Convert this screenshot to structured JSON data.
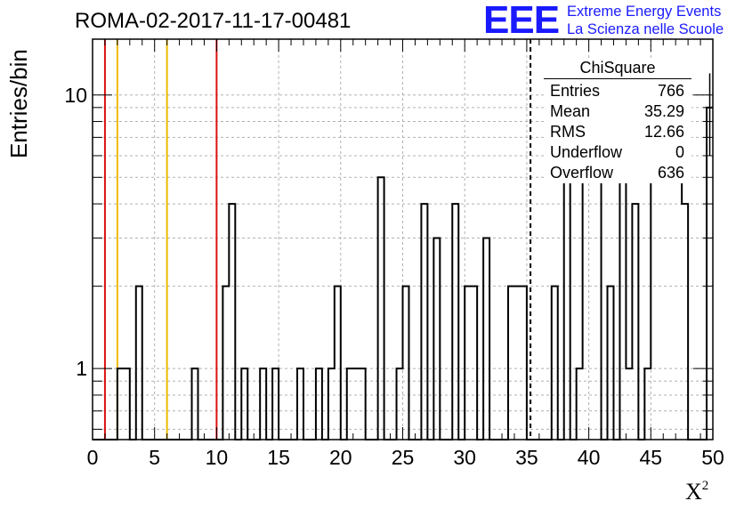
{
  "title": "ROMA-02-2017-11-17-00481",
  "logo": {
    "text": "EEE",
    "line1": "Extreme Energy Events",
    "line2": "La Scienza nelle Scuole",
    "color": "#1a1aff"
  },
  "chart_data": {
    "type": "histogram",
    "xlabel": "X",
    "xlabel_sup": "2",
    "ylabel": "Entries/bin",
    "xlim": [
      0,
      50
    ],
    "ylim": [
      0.55,
      16
    ],
    "log_y": true,
    "grid": true,
    "bin_width": 0.5,
    "x_ticks": [
      "0",
      "5",
      "10",
      "15",
      "20",
      "25",
      "30",
      "35",
      "40",
      "45",
      "50"
    ],
    "y_ticks": [
      "1",
      "10"
    ],
    "bins": [
      {
        "x": 2.0,
        "count": 1
      },
      {
        "x": 2.5,
        "count": 1
      },
      {
        "x": 3.5,
        "count": 2
      },
      {
        "x": 8.0,
        "count": 1
      },
      {
        "x": 10.5,
        "count": 2
      },
      {
        "x": 11.0,
        "count": 4
      },
      {
        "x": 12.0,
        "count": 1
      },
      {
        "x": 13.5,
        "count": 1
      },
      {
        "x": 14.5,
        "count": 1
      },
      {
        "x": 16.5,
        "count": 1
      },
      {
        "x": 18.0,
        "count": 1
      },
      {
        "x": 19.0,
        "count": 1
      },
      {
        "x": 19.5,
        "count": 2
      },
      {
        "x": 20.5,
        "count": 1
      },
      {
        "x": 21.0,
        "count": 1
      },
      {
        "x": 21.5,
        "count": 1
      },
      {
        "x": 23.0,
        "count": 5
      },
      {
        "x": 24.5,
        "count": 1
      },
      {
        "x": 25.0,
        "count": 2
      },
      {
        "x": 26.5,
        "count": 4
      },
      {
        "x": 27.5,
        "count": 3
      },
      {
        "x": 29.0,
        "count": 4
      },
      {
        "x": 30.0,
        "count": 2
      },
      {
        "x": 30.5,
        "count": 2
      },
      {
        "x": 31.5,
        "count": 3
      },
      {
        "x": 33.5,
        "count": 2
      },
      {
        "x": 34.0,
        "count": 2
      },
      {
        "x": 34.5,
        "count": 2
      },
      {
        "x": 37.0,
        "count": 2
      },
      {
        "x": 38.0,
        "count": 5
      },
      {
        "x": 39.0,
        "count": 1
      },
      {
        "x": 39.5,
        "count": 6
      },
      {
        "x": 40.0,
        "count": 6
      },
      {
        "x": 40.5,
        "count": 9
      },
      {
        "x": 41.5,
        "count": 2
      },
      {
        "x": 42.5,
        "count": 7
      },
      {
        "x": 43.0,
        "count": 1
      },
      {
        "x": 43.5,
        "count": 4
      },
      {
        "x": 44.5,
        "count": 1
      },
      {
        "x": 45.0,
        "count": 9
      },
      {
        "x": 45.5,
        "count": 5
      },
      {
        "x": 46.0,
        "count": 8
      },
      {
        "x": 46.5,
        "count": 7
      },
      {
        "x": 47.0,
        "count": 5
      },
      {
        "x": 47.5,
        "count": 4
      },
      {
        "x": 49.5,
        "count": 9
      }
    ],
    "error_bar_bin": {
      "x": 49.5,
      "count": 9
    },
    "vertical_lines": [
      {
        "x": 1,
        "color": "#dd1111",
        "style": "solid"
      },
      {
        "x": 2,
        "color": "#eebb00",
        "style": "solid"
      },
      {
        "x": 6,
        "color": "#eebb00",
        "style": "solid"
      },
      {
        "x": 10,
        "color": "#dd1111",
        "style": "solid"
      },
      {
        "x": 35.3,
        "color": "#000000",
        "style": "dashed"
      }
    ],
    "stats_box": {
      "title": "ChiSquare",
      "rows": [
        {
          "label": "Entries",
          "value": "766"
        },
        {
          "label": "Mean",
          "value": "35.29"
        },
        {
          "label": "RMS",
          "value": "12.66"
        },
        {
          "label": "Underflow",
          "value": "0"
        },
        {
          "label": "Overflow",
          "value": "636"
        }
      ]
    }
  }
}
